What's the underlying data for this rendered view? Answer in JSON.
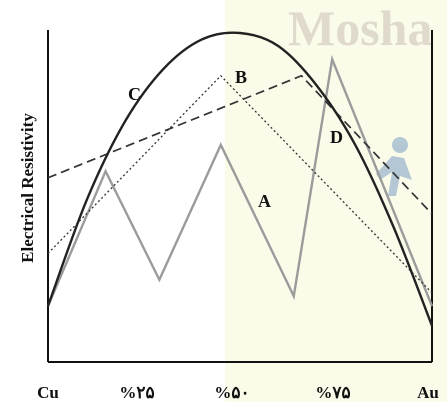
{
  "watermark": {
    "text": "Mosha"
  },
  "chart_data": {
    "type": "line",
    "ylabel": "Electrical Resistivity",
    "xlabel": "",
    "x_ticks": [
      {
        "x": 0,
        "label": "Cu"
      },
      {
        "x": 25,
        "label": "%۲۵"
      },
      {
        "x": 50,
        "label": "%۵۰"
      },
      {
        "x": 75,
        "label": "%۷۵"
      },
      {
        "x": 100,
        "label": "Au"
      }
    ],
    "xlim": [
      0,
      100
    ],
    "ylim": [
      0,
      100
    ],
    "series": [
      {
        "name": "A",
        "color": "#9b9b9b",
        "dash": "solid",
        "width": 2.4,
        "x": [
          0,
          15,
          29,
          45,
          64,
          74,
          100
        ],
        "y": [
          17,
          58,
          25,
          66,
          20,
          92,
          17
        ]
      },
      {
        "name": "B",
        "color": "#333333",
        "dash": "dotted",
        "width": 1.3,
        "x": [
          0,
          45,
          100
        ],
        "y": [
          33,
          87,
          21
        ]
      },
      {
        "name": "C",
        "color": "#222222",
        "dash": "solid",
        "width": 2.4,
        "curve": "parabola",
        "x": [
          0,
          10,
          20,
          30,
          40,
          50,
          60,
          70,
          80,
          90,
          100
        ],
        "y": [
          17,
          49,
          73,
          89,
          98,
          100,
          96,
          84,
          66,
          41,
          11
        ]
      },
      {
        "name": "D",
        "color": "#333333",
        "dash": "dashed",
        "width": 1.7,
        "x": [
          0,
          66,
          100
        ],
        "y": [
          56,
          87,
          45
        ]
      }
    ],
    "annotations": [
      {
        "text": "C",
        "series": "C"
      },
      {
        "text": "B",
        "series": "B"
      },
      {
        "text": "D",
        "series": "D"
      },
      {
        "text": "A",
        "series": "A"
      }
    ]
  }
}
